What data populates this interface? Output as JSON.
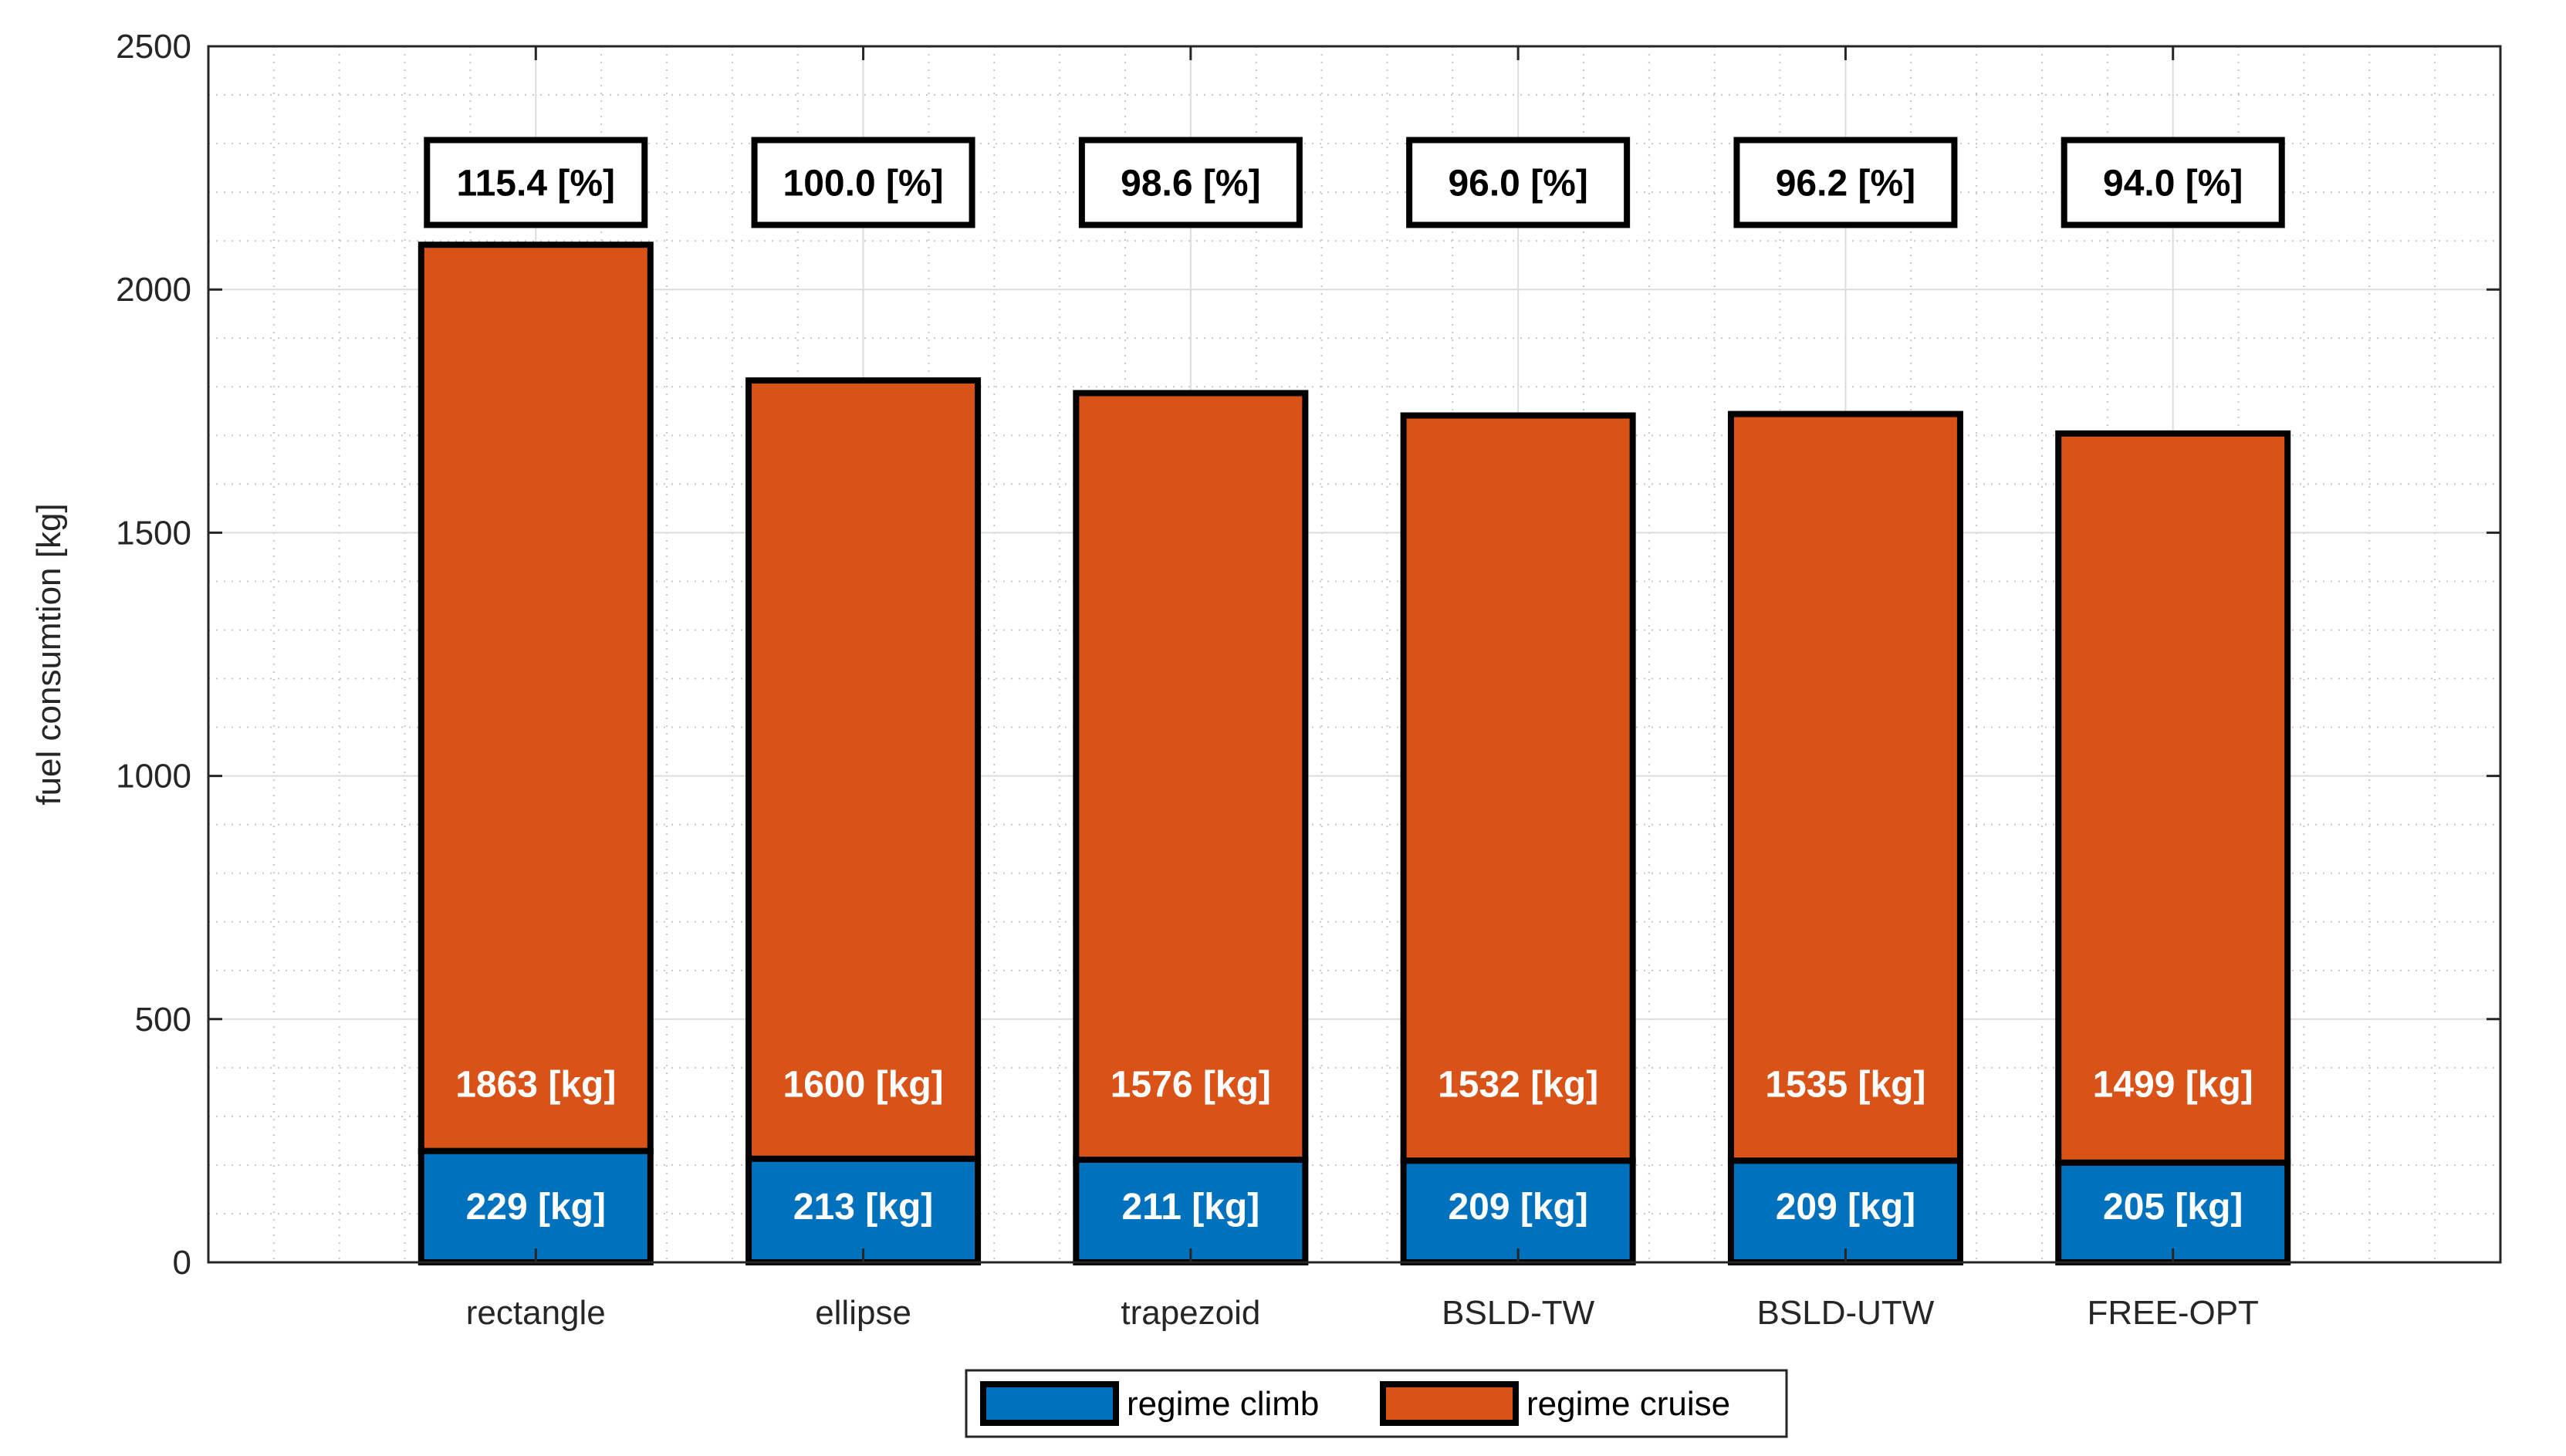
{
  "chart_data": {
    "type": "bar",
    "stacked": true,
    "categories": [
      "rectangle",
      "ellipse",
      "trapezoid",
      "BSLD-TW",
      "BSLD-UTW",
      "FREE-OPT"
    ],
    "series": [
      {
        "name": "regime climb",
        "values": [
          229,
          213,
          211,
          209,
          209,
          205
        ],
        "color": "#0072BD",
        "labels": [
          "229 [kg]",
          "213 [kg]",
          "211 [kg]",
          "209 [kg]",
          "209 [kg]",
          "205 [kg]"
        ]
      },
      {
        "name": "regime cruise",
        "values": [
          1863,
          1600,
          1576,
          1532,
          1535,
          1499
        ],
        "color": "#D95319",
        "labels": [
          "1863 [kg]",
          "1600 [kg]",
          "1576 [kg]",
          "1532 [kg]",
          "1535 [kg]",
          "1499 [kg]"
        ]
      }
    ],
    "annotations": [
      "115.4 [%]",
      "100.0 [%]",
      "98.6 [%]",
      "96.0 [%]",
      "96.2 [%]",
      "94.0 [%]"
    ],
    "title": "",
    "xlabel": "",
    "ylabel": "fuel consumtion [kg]",
    "ylim": [
      0,
      2500
    ],
    "yticks": [
      0,
      500,
      1000,
      1500,
      2000,
      2500
    ],
    "ytick_labels": [
      "0",
      "500",
      "1000",
      "1500",
      "2000",
      "2500"
    ],
    "xlim": [
      0,
      7
    ],
    "grid": true,
    "minor_grid": true,
    "legend_position": "bottom-center"
  }
}
